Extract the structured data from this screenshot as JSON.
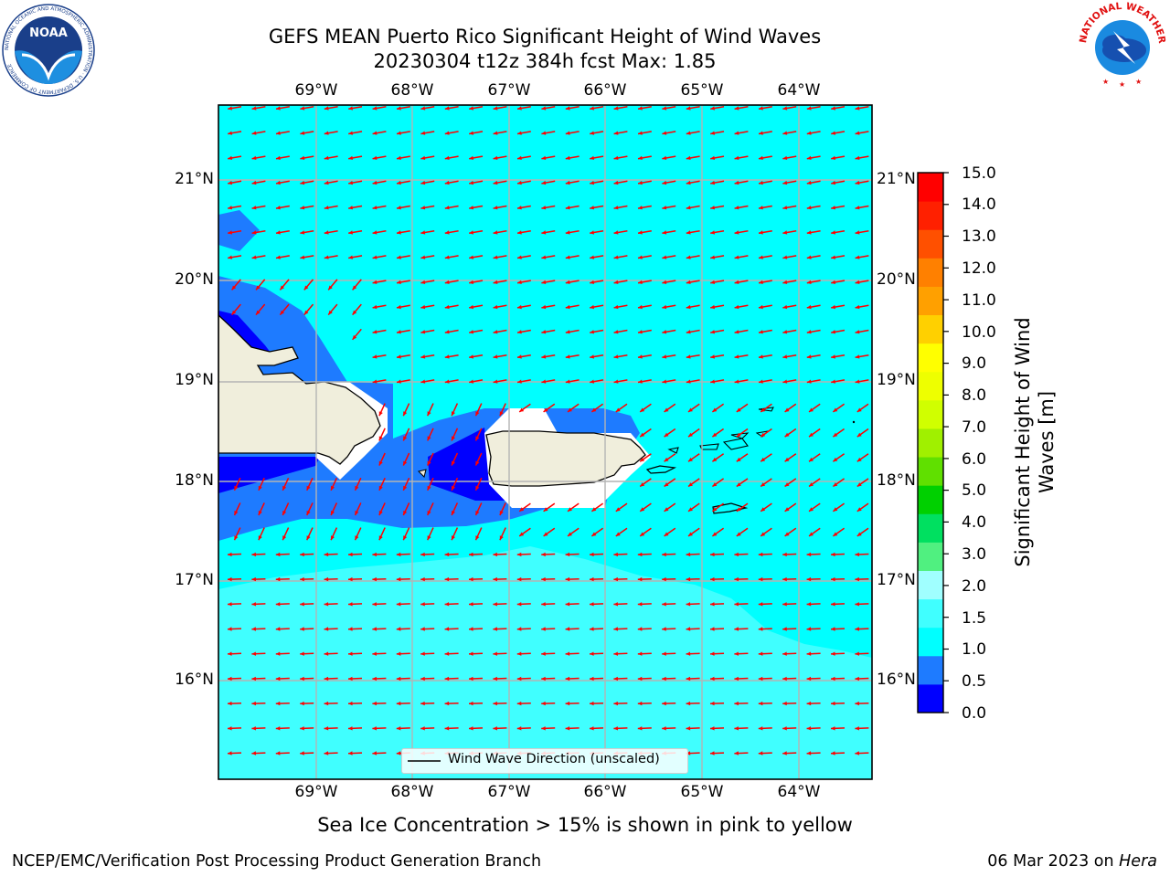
{
  "title_line1": "GEFS MEAN Puerto Rico Significant Height of Wind Waves",
  "title_line2": "20230304 t12z 384h fcst   Max: 1.85",
  "longitude_ticks": [
    "69°W",
    "68°W",
    "67°W",
    "66°W",
    "65°W",
    "64°W"
  ],
  "latitude_ticks": [
    "21°N",
    "20°N",
    "19°N",
    "18°N",
    "17°N",
    "16°N"
  ],
  "legend_label": "Wind Wave Direction (unscaled)",
  "colorbar": {
    "title_line1": "Significant Height of Wind",
    "title_line2": "Waves [m]",
    "tick_labels": [
      "15.0",
      "14.0",
      "13.0",
      "12.0",
      "11.0",
      "10.0",
      "9.0",
      "8.0",
      "7.0",
      "6.0",
      "5.0",
      "4.0",
      "3.0",
      "2.0",
      "1.5",
      "1.0",
      "0.5",
      "0.0"
    ],
    "colors": [
      "#0000ff",
      "#1e7bff",
      "#00ffff",
      "#40ffff",
      "#a0ffff",
      "#50f080",
      "#00e060",
      "#00d000",
      "#60e000",
      "#a0f000",
      "#d0ff00",
      "#eeff00",
      "#ffff00",
      "#ffd000",
      "#ffa000",
      "#ff8000",
      "#ff5000",
      "#ff2000",
      "#ff0000"
    ]
  },
  "colors": {
    "land": "#f0eedc",
    "arrow": "#ff0000",
    "grid": "#b4b4b4"
  },
  "caption": "Sea Ice Concentration > 15% is shown in pink to yellow",
  "footer_left": "NCEP/EMC/Verification Post Processing Product Generation Branch",
  "footer_right_prefix": "06 Mar 2023 on ",
  "footer_right_host": "Hera",
  "logos": {
    "noaa_text": "NOAA",
    "noaa_ring_text": "NATIONAL OCEANIC AND ATMOSPHERIC ADMINISTRATION · U.S. DEPARTMENT OF COMMERCE",
    "nws_ring_text": "NATIONAL WEATHER SERVICE"
  }
}
